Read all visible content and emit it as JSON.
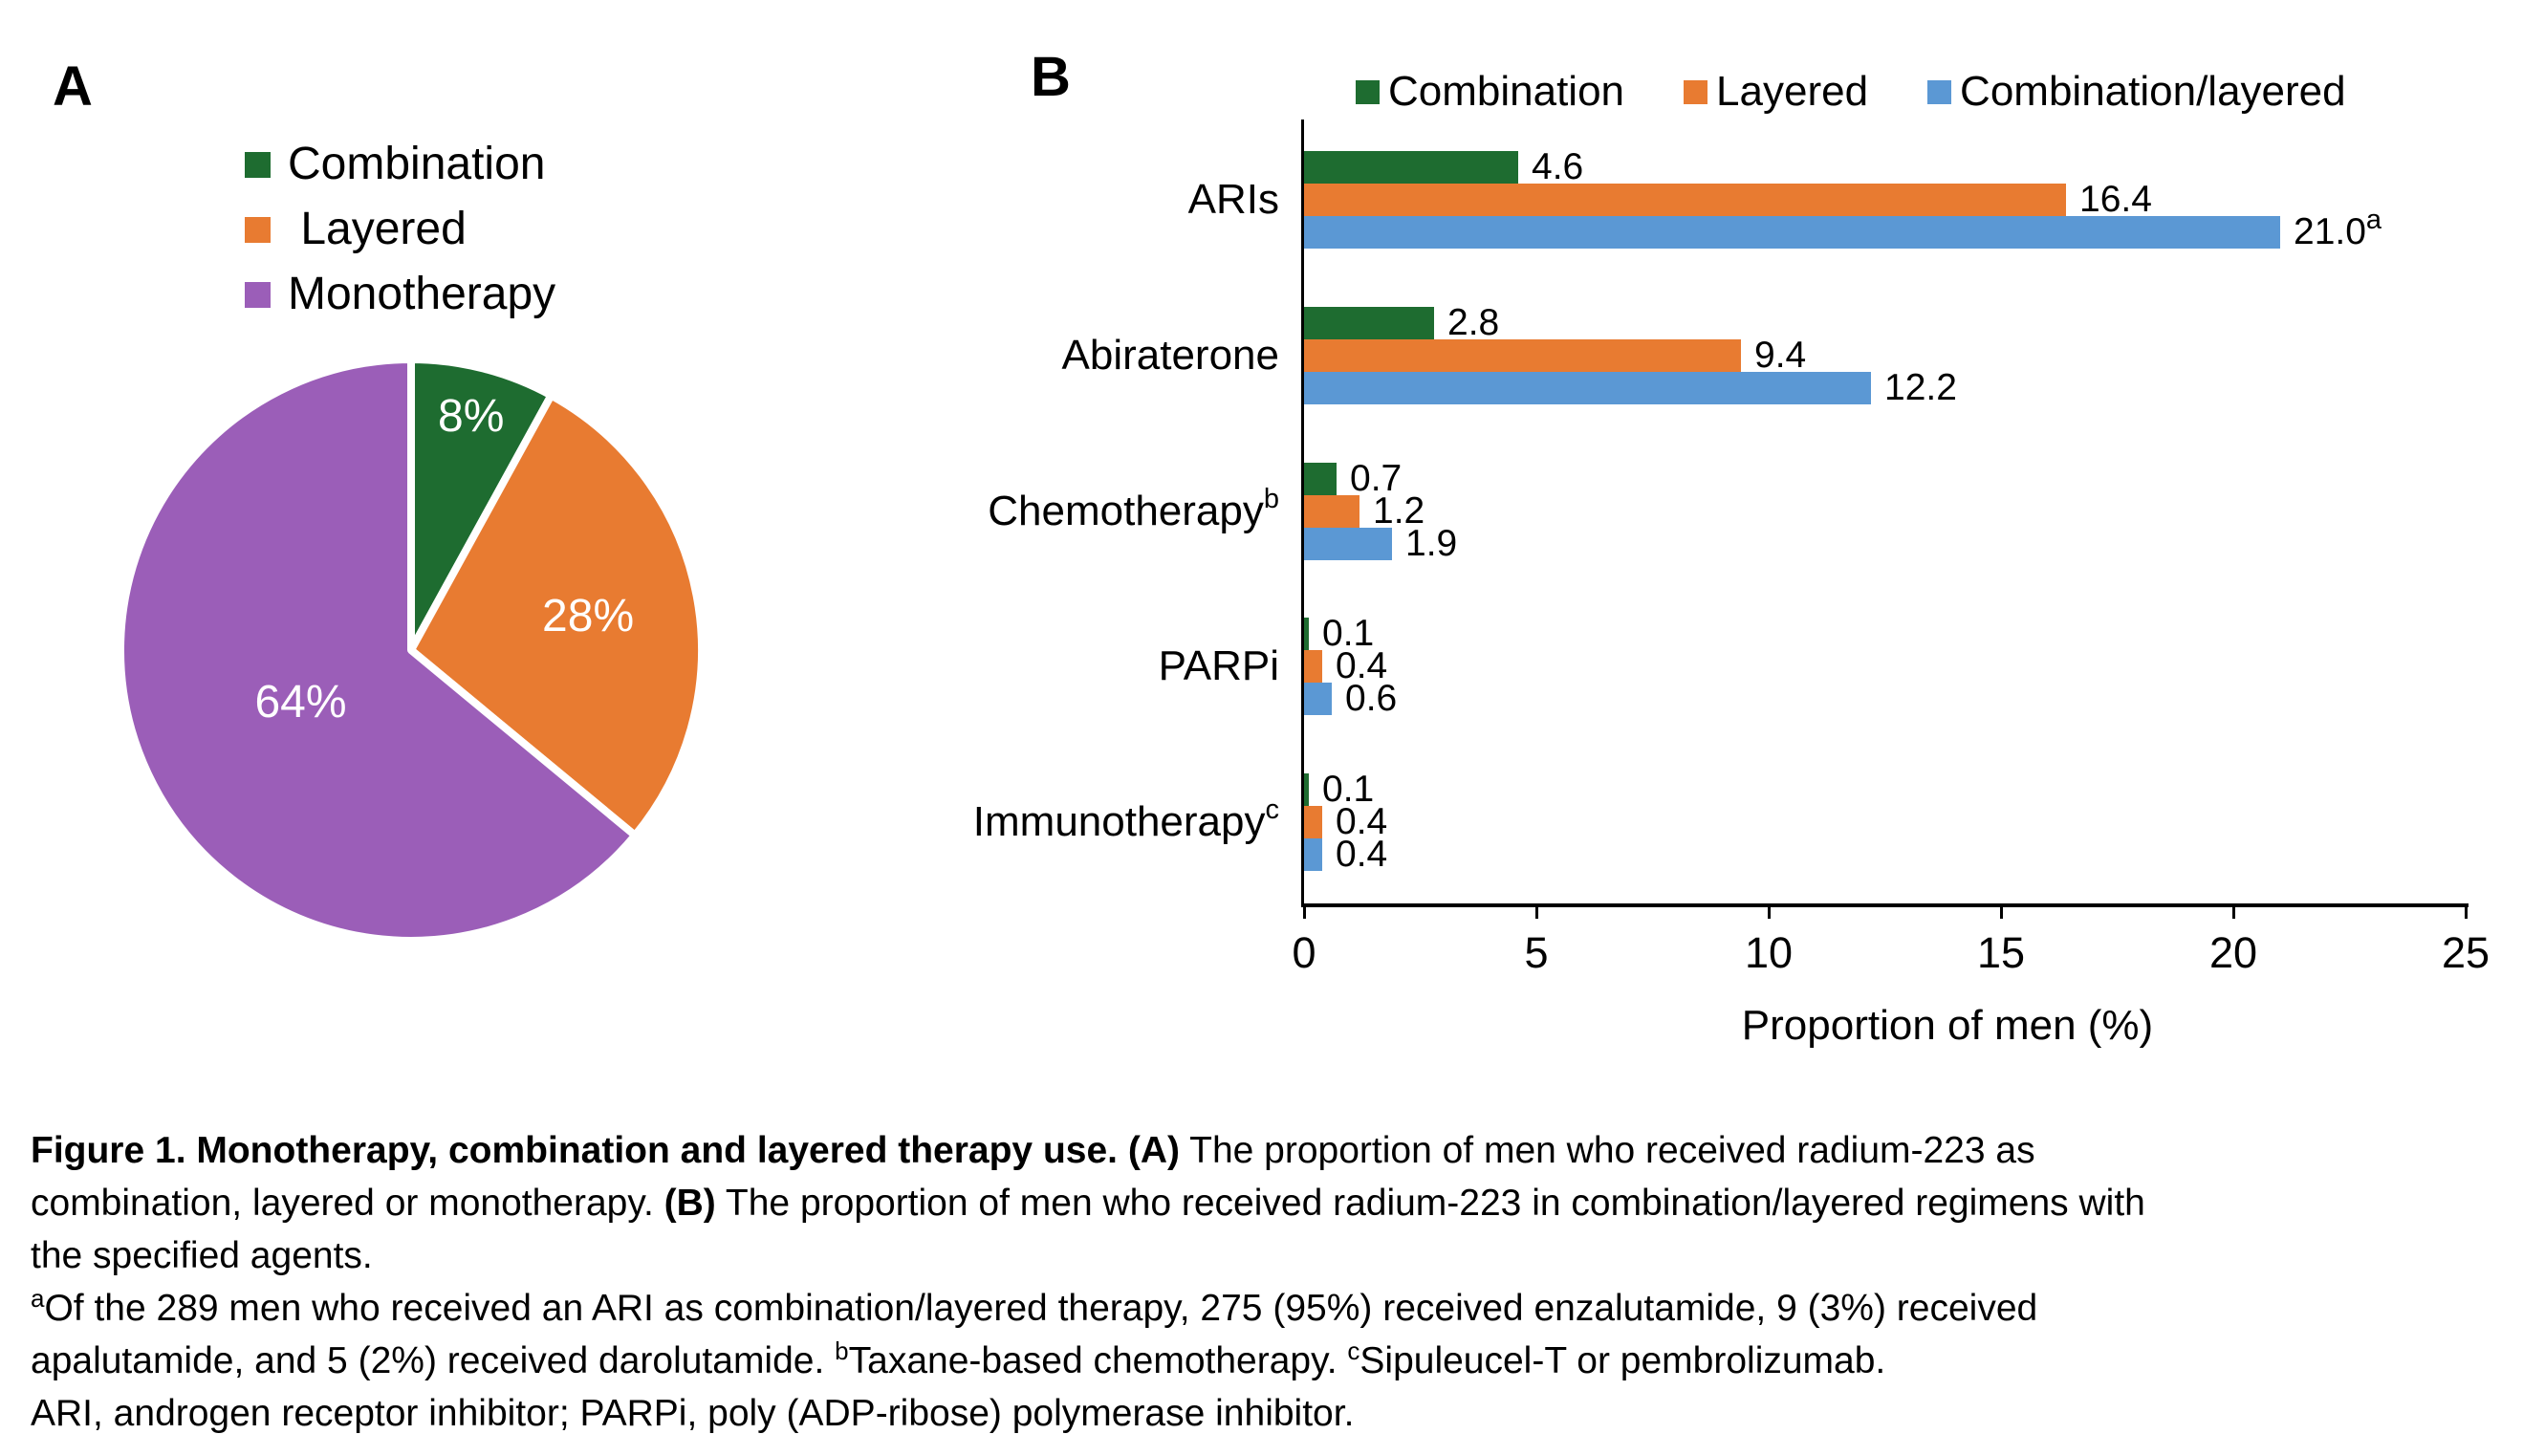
{
  "figure": {
    "panel_a_label": "A",
    "panel_b_label": "B"
  },
  "chart_data": [
    {
      "type": "pie",
      "panel": "A",
      "labels": [
        "Combination",
        " Layered",
        "Monotherapy"
      ],
      "values": [
        8,
        28,
        64
      ],
      "slice_labels": [
        "8%",
        "28%",
        "64%"
      ],
      "colors": [
        "#1e6c30",
        "#e87b31",
        "#9b5eb8"
      ],
      "start_angle": "top",
      "direction": "clockwise",
      "legend_position": "above"
    },
    {
      "type": "bar",
      "panel": "B",
      "orientation": "horizontal",
      "categories": [
        "ARIs",
        "Abiraterone",
        "Chemotherapy",
        "PARPi",
        "Immunotherapy"
      ],
      "category_sups": [
        "",
        "",
        "b",
        "",
        "c"
      ],
      "series": [
        {
          "name": "Combination",
          "color": "#1e6c30",
          "values": [
            4.6,
            2.8,
            0.7,
            0.1,
            0.1
          ],
          "value_labels": [
            "4.6",
            "2.8",
            "0.7",
            "0.1",
            "0.1"
          ],
          "label_sups": [
            "",
            "",
            "",
            "",
            ""
          ]
        },
        {
          "name": "Layered",
          "color": "#e87b31",
          "values": [
            16.4,
            9.4,
            1.2,
            0.4,
            0.4
          ],
          "value_labels": [
            "16.4",
            "9.4",
            "1.2",
            "0.4",
            "0.4"
          ],
          "label_sups": [
            "",
            "",
            "",
            "",
            ""
          ]
        },
        {
          "name": "Combination/layered",
          "color": "#5b98d4",
          "values": [
            21.0,
            12.2,
            1.9,
            0.6,
            0.4
          ],
          "value_labels": [
            "21.0",
            "12.2",
            "1.9",
            "0.6",
            "0.4"
          ],
          "label_sups": [
            "a",
            "",
            "",
            "",
            ""
          ]
        }
      ],
      "xlabel": "Proportion of men (%)",
      "xlim": [
        0,
        25
      ],
      "xticks": [
        0,
        5,
        10,
        15,
        20,
        25
      ],
      "legend_position": "top",
      "grid": false
    }
  ],
  "caption": {
    "paragraphs": [
      [
        {
          "text": "Figure 1. Monotherapy, combination and layered therapy use.",
          "bold": true
        },
        {
          "text": " "
        },
        {
          "text": "(A)",
          "bold": true
        },
        {
          "text": " The proportion of men who received radium-223 as"
        },
        {
          "br": true
        },
        {
          "text": "combination, layered or monotherapy. "
        },
        {
          "text": "(B)",
          "bold": true
        },
        {
          "text": " The proportion of men who received radium-223 in combination/layered regimens with"
        },
        {
          "br": true
        },
        {
          "text": "the specified agents."
        }
      ],
      [
        {
          "text": "a",
          "sup": true
        },
        {
          "text": "Of the 289 men who received an ARI as combination/layered therapy, 275 (95%) received enzalutamide, 9 (3%) received"
        },
        {
          "br": true
        },
        {
          "text": "apalutamide, and 5 (2%) received darolutamide. "
        },
        {
          "text": "b",
          "sup": true
        },
        {
          "text": "Taxane-based chemotherapy. "
        },
        {
          "text": "c",
          "sup": true
        },
        {
          "text": "Sipuleucel-T or pembrolizumab."
        }
      ],
      [
        {
          "text": "ARI, androgen receptor inhibitor; PARPi, poly (ADP-ribose) polymerase inhibitor."
        }
      ]
    ]
  }
}
